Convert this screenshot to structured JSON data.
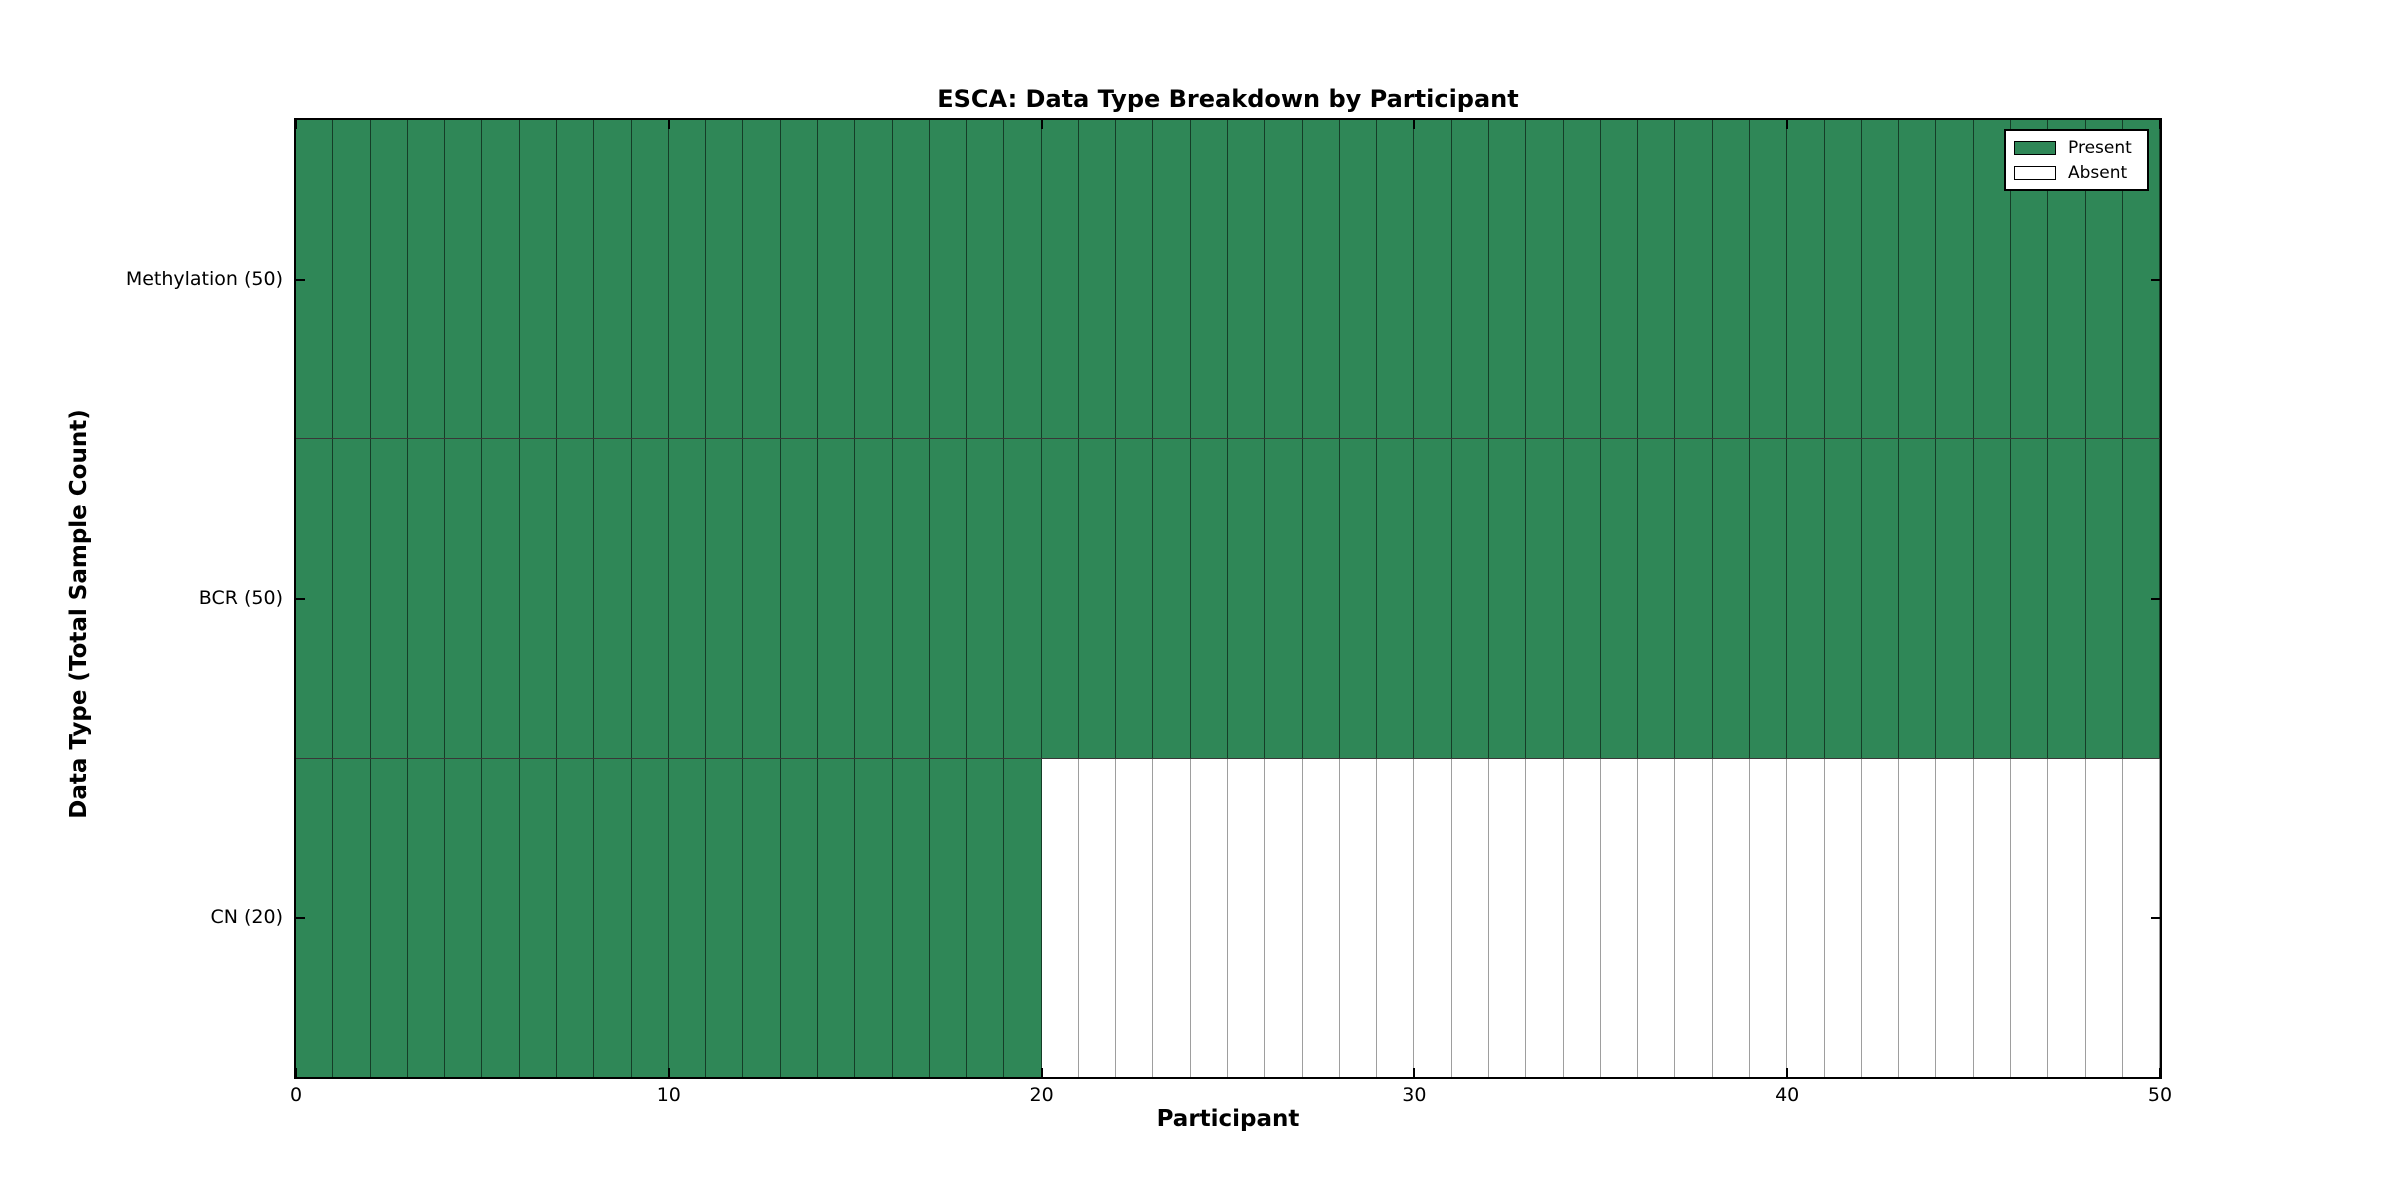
{
  "figure": {
    "background": "#ffffff"
  },
  "chart_data": {
    "type": "heatmap",
    "title": "ESCA: Data Type Breakdown by Participant",
    "xlabel": "Participant",
    "ylabel": "Data Type (Total Sample Count)",
    "x_ticks": [
      0,
      10,
      20,
      30,
      40,
      50
    ],
    "xlim": [
      0,
      50
    ],
    "n_participants": 50,
    "grid": "cell-borders",
    "rows": [
      {
        "label": "Methylation (50)",
        "data_type": "Methylation",
        "total_samples": 50,
        "present_count": 50,
        "absent_count": 0
      },
      {
        "label": "BCR (50)",
        "data_type": "BCR",
        "total_samples": 50,
        "present_count": 50,
        "absent_count": 0
      },
      {
        "label": "CN (20)",
        "data_type": "CN",
        "total_samples": 20,
        "present_count": 20,
        "absent_count": 30
      }
    ],
    "legend": {
      "position": "upper right",
      "entries": [
        {
          "label": "Present",
          "color": "#2f8757"
        },
        {
          "label": "Absent",
          "color": "#ffffff"
        }
      ]
    },
    "colors": {
      "present": "#2f8757",
      "absent": "#ffffff",
      "cell_border_present": "rgba(0,0,0,0.55)",
      "cell_border_absent": "#9e9e9e",
      "spine": "#000000"
    }
  }
}
